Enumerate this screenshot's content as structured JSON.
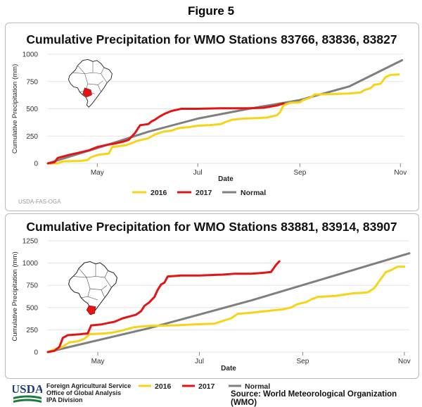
{
  "figure_title": "Figure 5",
  "colors": {
    "s2016": "#f7d417",
    "s2017": "#e41414",
    "normal": "#7f7f7f",
    "grid": "#e4e4e4",
    "map_highlight": "#e41414"
  },
  "chart_data": [
    {
      "type": "line",
      "title": "Cumulative Precipitation for WMO Stations 83766, 83836, 83827",
      "xlabel": "Date",
      "ylabel": "Cumulative Precipitation (mm)",
      "ylim": [
        0,
        1000
      ],
      "yticks": [
        "0",
        "250",
        "500",
        "750",
        "1000"
      ],
      "x_domain": [
        "2000-04-01",
        "2000-11-03"
      ],
      "xticks": [
        {
          "label": "May",
          "x": "2000-05-01"
        },
        {
          "label": "Jul",
          "x": "2000-07-01"
        },
        {
          "label": "Sep",
          "x": "2000-09-01"
        },
        {
          "label": "Nov",
          "x": "2000-11-01"
        }
      ],
      "grid": true,
      "legend_position": "bottom",
      "credit": "USDA-FAS-OGA",
      "series": [
        {
          "name": "2016",
          "color": "#f7d417",
          "points": [
            [
              "2000-04-01",
              0
            ],
            [
              "2000-04-07",
              0
            ],
            [
              "2000-04-10",
              18
            ],
            [
              "2000-04-15",
              20
            ],
            [
              "2000-04-20",
              22
            ],
            [
              "2000-04-25",
              30
            ],
            [
              "2000-04-27",
              55
            ],
            [
              "2000-05-02",
              80
            ],
            [
              "2000-05-08",
              90
            ],
            [
              "2000-05-10",
              150
            ],
            [
              "2000-05-18",
              165
            ],
            [
              "2000-05-22",
              185
            ],
            [
              "2000-05-25",
              205
            ],
            [
              "2000-06-01",
              230
            ],
            [
              "2000-06-05",
              265
            ],
            [
              "2000-06-10",
              290
            ],
            [
              "2000-06-15",
              300
            ],
            [
              "2000-06-20",
              325
            ],
            [
              "2000-06-25",
              330
            ],
            [
              "2000-07-01",
              345
            ],
            [
              "2000-07-08",
              350
            ],
            [
              "2000-07-15",
              360
            ],
            [
              "2000-07-18",
              380
            ],
            [
              "2000-07-22",
              400
            ],
            [
              "2000-07-29",
              410
            ],
            [
              "2000-08-05",
              415
            ],
            [
              "2000-08-12",
              420
            ],
            [
              "2000-08-15",
              430
            ],
            [
              "2000-08-18",
              440
            ],
            [
              "2000-08-20",
              470
            ],
            [
              "2000-08-22",
              530
            ],
            [
              "2000-08-26",
              555
            ],
            [
              "2000-09-01",
              560
            ],
            [
              "2000-09-03",
              580
            ],
            [
              "2000-09-07",
              600
            ],
            [
              "2000-09-10",
              630
            ],
            [
              "2000-09-20",
              635
            ],
            [
              "2000-10-01",
              640
            ],
            [
              "2000-10-08",
              650
            ],
            [
              "2000-10-10",
              670
            ],
            [
              "2000-10-14",
              690
            ],
            [
              "2000-10-16",
              720
            ],
            [
              "2000-10-20",
              730
            ],
            [
              "2000-10-23",
              790
            ],
            [
              "2000-10-26",
              810
            ],
            [
              "2000-10-31",
              815
            ]
          ]
        },
        {
          "name": "2017",
          "color": "#e41414",
          "points": [
            [
              "2000-04-01",
              0
            ],
            [
              "2000-04-05",
              10
            ],
            [
              "2000-04-07",
              50
            ],
            [
              "2000-04-12",
              70
            ],
            [
              "2000-04-16",
              85
            ],
            [
              "2000-04-19",
              95
            ],
            [
              "2000-04-22",
              105
            ],
            [
              "2000-04-26",
              120
            ],
            [
              "2000-05-01",
              150
            ],
            [
              "2000-05-07",
              170
            ],
            [
              "2000-05-11",
              180
            ],
            [
              "2000-05-14",
              190
            ],
            [
              "2000-05-17",
              200
            ],
            [
              "2000-05-20",
              215
            ],
            [
              "2000-05-24",
              280
            ],
            [
              "2000-05-27",
              350
            ],
            [
              "2000-06-01",
              360
            ],
            [
              "2000-06-03",
              385
            ],
            [
              "2000-06-05",
              400
            ],
            [
              "2000-06-08",
              430
            ],
            [
              "2000-06-11",
              455
            ],
            [
              "2000-06-15",
              480
            ],
            [
              "2000-06-21",
              500
            ],
            [
              "2000-07-01",
              500
            ],
            [
              "2000-07-15",
              505
            ],
            [
              "2000-08-01",
              505
            ],
            [
              "2000-08-10",
              510
            ],
            [
              "2000-08-18",
              530
            ],
            [
              "2000-08-22",
              550
            ]
          ]
        },
        {
          "name": "Normal",
          "color": "#7f7f7f",
          "points": [
            [
              "2000-04-01",
              0
            ],
            [
              "2000-05-01",
              140
            ],
            [
              "2000-06-01",
              290
            ],
            [
              "2000-07-01",
              410
            ],
            [
              "2000-08-01",
              500
            ],
            [
              "2000-09-01",
              580
            ],
            [
              "2000-10-01",
              705
            ],
            [
              "2000-11-02",
              945
            ]
          ]
        }
      ],
      "map": {
        "highlight": "south"
      }
    },
    {
      "type": "line",
      "title": "Cumulative Precipitation for WMO Stations 83881, 83914, 83907",
      "xlabel": "Date",
      "ylabel": "Cumulative Precipitation (mm)",
      "ylim": [
        0,
        1250
      ],
      "yticks": [
        "0",
        "250",
        "500",
        "750",
        "1000",
        "1250"
      ],
      "x_domain": [
        "2000-04-01",
        "2000-11-04"
      ],
      "xticks": [
        {
          "label": "May",
          "x": "2000-05-01"
        },
        {
          "label": "Jul",
          "x": "2000-07-01"
        },
        {
          "label": "Sep",
          "x": "2000-09-01"
        },
        {
          "label": "Nov",
          "x": "2000-11-01"
        }
      ],
      "grid": true,
      "legend_position": "bottom",
      "series": [
        {
          "name": "2016",
          "color": "#f7d417",
          "points": [
            [
              "2000-04-01",
              0
            ],
            [
              "2000-04-05",
              30
            ],
            [
              "2000-04-10",
              60
            ],
            [
              "2000-04-14",
              110
            ],
            [
              "2000-04-19",
              120
            ],
            [
              "2000-04-23",
              150
            ],
            [
              "2000-04-26",
              200
            ],
            [
              "2000-05-05",
              210
            ],
            [
              "2000-05-10",
              220
            ],
            [
              "2000-05-15",
              240
            ],
            [
              "2000-05-19",
              260
            ],
            [
              "2000-05-23",
              280
            ],
            [
              "2000-06-01",
              295
            ],
            [
              "2000-06-15",
              300
            ],
            [
              "2000-06-28",
              310
            ],
            [
              "2000-07-10",
              320
            ],
            [
              "2000-07-15",
              350
            ],
            [
              "2000-07-20",
              380
            ],
            [
              "2000-07-24",
              430
            ],
            [
              "2000-07-31",
              440
            ],
            [
              "2000-08-10",
              460
            ],
            [
              "2000-08-20",
              480
            ],
            [
              "2000-08-25",
              500
            ],
            [
              "2000-08-29",
              540
            ],
            [
              "2000-09-03",
              560
            ],
            [
              "2000-09-06",
              590
            ],
            [
              "2000-09-10",
              620
            ],
            [
              "2000-09-20",
              630
            ],
            [
              "2000-10-01",
              660
            ],
            [
              "2000-10-10",
              670
            ],
            [
              "2000-10-14",
              720
            ],
            [
              "2000-10-17",
              800
            ],
            [
              "2000-10-21",
              900
            ],
            [
              "2000-10-24",
              920
            ],
            [
              "2000-10-28",
              960
            ],
            [
              "2000-11-01",
              960
            ]
          ]
        },
        {
          "name": "2017",
          "color": "#e41414",
          "points": [
            [
              "2000-04-01",
              0
            ],
            [
              "2000-04-05",
              15
            ],
            [
              "2000-04-08",
              60
            ],
            [
              "2000-04-10",
              160
            ],
            [
              "2000-04-13",
              190
            ],
            [
              "2000-04-20",
              200
            ],
            [
              "2000-04-25",
              210
            ],
            [
              "2000-04-27",
              300
            ],
            [
              "2000-05-03",
              310
            ],
            [
              "2000-05-08",
              330
            ],
            [
              "2000-05-11",
              340
            ],
            [
              "2000-05-16",
              380
            ],
            [
              "2000-05-20",
              400
            ],
            [
              "2000-05-24",
              420
            ],
            [
              "2000-05-27",
              460
            ],
            [
              "2000-05-29",
              520
            ],
            [
              "2000-06-01",
              560
            ],
            [
              "2000-06-04",
              620
            ],
            [
              "2000-06-06",
              700
            ],
            [
              "2000-06-08",
              760
            ],
            [
              "2000-06-10",
              780
            ],
            [
              "2000-06-12",
              850
            ],
            [
              "2000-06-20",
              860
            ],
            [
              "2000-07-01",
              860
            ],
            [
              "2000-07-15",
              870
            ],
            [
              "2000-07-22",
              880
            ],
            [
              "2000-08-01",
              880
            ],
            [
              "2000-08-08",
              890
            ],
            [
              "2000-08-13",
              900
            ],
            [
              "2000-08-16",
              980
            ],
            [
              "2000-08-18",
              1020
            ]
          ]
        },
        {
          "name": "Normal",
          "color": "#7f7f7f",
          "points": [
            [
              "2000-04-01",
              0
            ],
            [
              "2000-06-01",
              270
            ],
            [
              "2000-08-01",
              580
            ],
            [
              "2000-11-04",
              1110
            ]
          ]
        }
      ],
      "map": {
        "highlight": "far-south"
      }
    }
  ],
  "footer": {
    "agency_lines": [
      "Foreign Agricultural Service",
      "Office of Global Analysis",
      "IPA Division"
    ],
    "logo_text": "USDA",
    "source": "Source: World Meteorological Organization (WMO)"
  }
}
